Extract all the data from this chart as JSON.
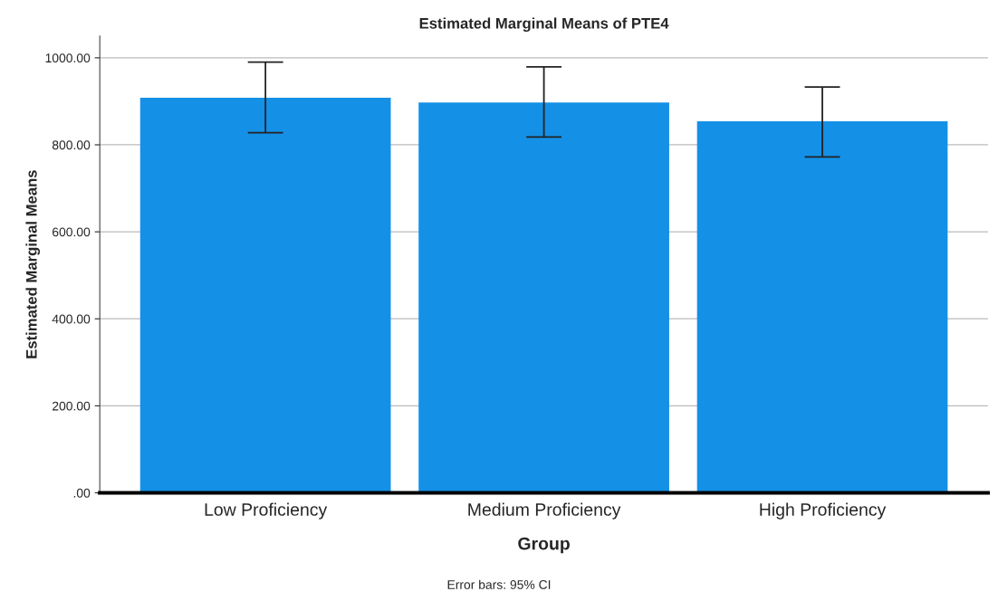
{
  "chart_data": {
    "type": "bar",
    "title": "Estimated Marginal Means of PTE4",
    "xlabel": "Group",
    "ylabel": "Estimated Marginal Means",
    "categories": [
      "Low Proficiency",
      "Medium Proficiency",
      "High Proficiency"
    ],
    "values": [
      908,
      897,
      854
    ],
    "errors": [
      [
        828,
        990
      ],
      [
        818,
        979
      ],
      [
        772,
        933
      ]
    ],
    "color": "#1490e6",
    "ylim": [
      0,
      1050
    ],
    "yticks": [
      {
        "value": 0,
        "label": ".00"
      },
      {
        "value": 200,
        "label": "200.00"
      },
      {
        "value": 400,
        "label": "400.00"
      },
      {
        "value": 600,
        "label": "600.00"
      },
      {
        "value": 800,
        "label": "800.00"
      },
      {
        "value": 1000,
        "label": "1000.00"
      }
    ],
    "grid": "y",
    "legend": false,
    "annotations": [
      "Error bars: 95% CI"
    ]
  }
}
